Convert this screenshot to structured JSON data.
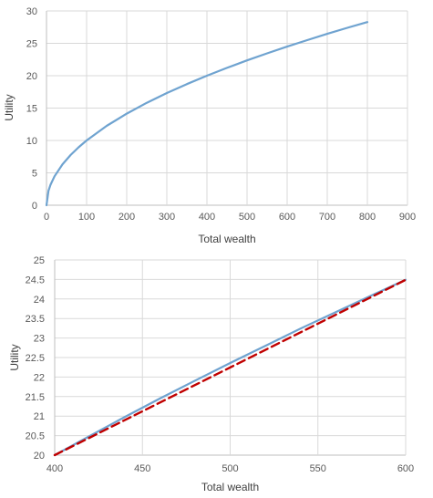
{
  "chart_data": [
    {
      "type": "line",
      "xlabel": "Total wealth",
      "ylabel": "Utility",
      "xlim": [
        0,
        900
      ],
      "ylim": [
        0,
        30
      ],
      "x_ticks": [
        0,
        100,
        200,
        300,
        400,
        500,
        600,
        700,
        800,
        900
      ],
      "y_ticks": [
        0,
        5,
        10,
        15,
        20,
        25,
        30
      ],
      "x_tick_labels": [
        "0",
        "100",
        "200",
        "300",
        "400",
        "500",
        "600",
        "700",
        "800",
        "900"
      ],
      "y_tick_labels": [
        "0",
        "5",
        "10",
        "15",
        "20",
        "25",
        "30"
      ],
      "grid": true,
      "series": [
        {
          "color": "#6fa3d0",
          "style": "solid",
          "x": [
            0,
            5,
            10,
            20,
            40,
            60,
            80,
            100,
            150,
            200,
            250,
            300,
            350,
            400,
            450,
            500,
            550,
            600,
            650,
            700,
            750,
            800
          ],
          "y": [
            0,
            2.24,
            3.16,
            4.47,
            6.32,
            7.75,
            8.94,
            10.0,
            12.25,
            14.14,
            15.81,
            17.32,
            18.71,
            20.0,
            21.21,
            22.36,
            23.45,
            24.49,
            25.5,
            26.46,
            27.39,
            28.28
          ]
        }
      ]
    },
    {
      "type": "line",
      "xlabel": "Total wealth",
      "ylabel": "Utility",
      "xlim": [
        400,
        600
      ],
      "ylim": [
        20,
        25
      ],
      "x_ticks": [
        400,
        450,
        500,
        550,
        600
      ],
      "y_ticks": [
        20,
        20.5,
        21,
        21.5,
        22,
        22.5,
        23,
        23.5,
        24,
        24.5,
        25
      ],
      "x_tick_labels": [
        "400",
        "450",
        "500",
        "550",
        "600"
      ],
      "y_tick_labels": [
        "20",
        "20.5",
        "21",
        "21.5",
        "22",
        "22.5",
        "23",
        "23.5",
        "24",
        "24.5",
        "25"
      ],
      "grid": true,
      "series": [
        {
          "color": "#6fa3d0",
          "style": "solid",
          "x": [
            400,
            420,
            440,
            460,
            480,
            500,
            520,
            540,
            560,
            580,
            600
          ],
          "y": [
            20.0,
            20.49,
            20.98,
            21.45,
            21.91,
            22.36,
            22.8,
            23.24,
            23.66,
            24.08,
            24.49
          ]
        },
        {
          "color": "#c00000",
          "style": "dashed",
          "x": [
            400,
            600
          ],
          "y": [
            20.0,
            24.49
          ]
        }
      ]
    }
  ]
}
